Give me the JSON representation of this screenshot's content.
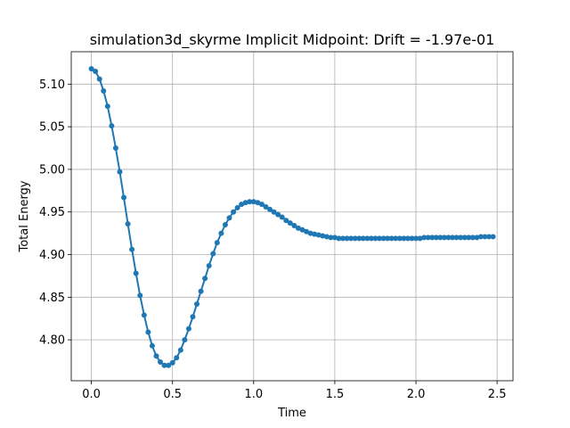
{
  "chart_data": {
    "type": "line",
    "title": "simulation3d_skyrme Implicit Midpoint: Drift = -1.97e-01",
    "xlabel": "Time",
    "ylabel": "Total Energy",
    "xlim": [
      -0.124,
      2.598
    ],
    "ylim": [
      4.752,
      5.138
    ],
    "xticks": [
      0.0,
      0.5,
      1.0,
      1.5,
      2.0,
      2.5
    ],
    "xtick_labels": [
      "0.0",
      "0.5",
      "1.0",
      "1.5",
      "2.0",
      "2.5"
    ],
    "yticks": [
      4.8,
      4.85,
      4.9,
      4.95,
      5.0,
      5.05,
      5.1
    ],
    "ytick_labels": [
      "4.80",
      "4.85",
      "4.90",
      "4.95",
      "5.00",
      "5.05",
      "5.10"
    ],
    "grid": true,
    "color": "#1f77b4",
    "marker": "circle",
    "series": [
      {
        "x": [
          0.0,
          0.025,
          0.05,
          0.075,
          0.1,
          0.125,
          0.15,
          0.175,
          0.2,
          0.225,
          0.25,
          0.275,
          0.3,
          0.325,
          0.35,
          0.375,
          0.4,
          0.425,
          0.45,
          0.475,
          0.5,
          0.525,
          0.55,
          0.575,
          0.6,
          0.625,
          0.65,
          0.675,
          0.7,
          0.725,
          0.75,
          0.775,
          0.8,
          0.825,
          0.85,
          0.875,
          0.9,
          0.925,
          0.95,
          0.975,
          1.0,
          1.025,
          1.05,
          1.075,
          1.1,
          1.125,
          1.15,
          1.175,
          1.2,
          1.225,
          1.25,
          1.275,
          1.3,
          1.325,
          1.35,
          1.375,
          1.4,
          1.425,
          1.45,
          1.475,
          1.5,
          1.525,
          1.55,
          1.575,
          1.6,
          1.625,
          1.65,
          1.675,
          1.7,
          1.725,
          1.75,
          1.775,
          1.8,
          1.825,
          1.85,
          1.875,
          1.9,
          1.925,
          1.95,
          1.975,
          2.0,
          2.025,
          2.05,
          2.075,
          2.1,
          2.125,
          2.15,
          2.175,
          2.2,
          2.225,
          2.25,
          2.275,
          2.3,
          2.325,
          2.35,
          2.375,
          2.4,
          2.425,
          2.45,
          2.475
        ],
        "y": [
          5.118,
          5.115,
          5.106,
          5.092,
          5.074,
          5.051,
          5.025,
          4.997,
          4.967,
          4.936,
          4.906,
          4.878,
          4.852,
          4.829,
          4.809,
          4.793,
          4.781,
          4.774,
          4.77,
          4.77,
          4.773,
          4.779,
          4.788,
          4.8,
          4.813,
          4.827,
          4.842,
          4.857,
          4.872,
          4.887,
          4.901,
          4.914,
          4.925,
          4.935,
          4.943,
          4.95,
          4.955,
          4.959,
          4.961,
          4.962,
          4.962,
          4.961,
          4.959,
          4.956,
          4.953,
          4.95,
          4.947,
          4.944,
          4.94,
          4.937,
          4.934,
          4.931,
          4.929,
          4.927,
          4.925,
          4.924,
          4.923,
          4.922,
          4.921,
          4.92,
          4.92,
          4.919,
          4.919,
          4.919,
          4.919,
          4.919,
          4.919,
          4.919,
          4.919,
          4.919,
          4.919,
          4.919,
          4.919,
          4.919,
          4.919,
          4.919,
          4.919,
          4.919,
          4.919,
          4.919,
          4.919,
          4.919,
          4.92,
          4.92,
          4.92,
          4.92,
          4.92,
          4.92,
          4.92,
          4.92,
          4.92,
          4.92,
          4.92,
          4.92,
          4.92,
          4.92,
          4.921,
          4.921,
          4.921,
          4.921
        ]
      }
    ]
  }
}
